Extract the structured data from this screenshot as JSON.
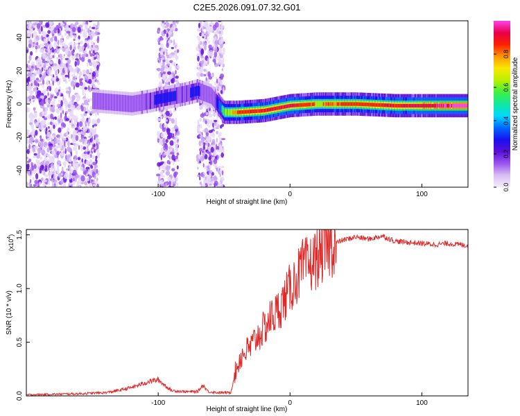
{
  "title": "C2E5.2026.091.07.32.G01",
  "chart_data": [
    {
      "type": "heatmap",
      "title": "",
      "xlabel": "Height of straight line (km)",
      "ylabel": "Frequency (Hz)",
      "xlim": [
        -200,
        135
      ],
      "ylim": [
        -50,
        50
      ],
      "xticks": [
        -100,
        0,
        100
      ],
      "yticks": [
        -40,
        -20,
        0,
        20,
        40
      ],
      "colorbar": {
        "label": "Normalized spectral amplitude",
        "range": [
          0.0,
          1.0
        ],
        "ticks": [
          0.0,
          0.2,
          0.4,
          0.6,
          0.8
        ],
        "colormap": [
          "#f4eefc",
          "#d8bdf3",
          "#9a55f0",
          "#5a10d8",
          "#1a10f0",
          "#0068ff",
          "#00d8ff",
          "#10e8a0",
          "#40f040",
          "#b8f000",
          "#f8e800",
          "#ff9800",
          "#ff2000",
          "#e8004a",
          "#ff40f0"
        ]
      },
      "band": {
        "description_x": [
          -150,
          -135,
          -120,
          -105,
          -100,
          -80,
          -70,
          -60,
          -50,
          -40,
          -20,
          0,
          20,
          50,
          80,
          110,
          135
        ],
        "center_hz": [
          2,
          1,
          0,
          2,
          3,
          6,
          8,
          5,
          -5,
          -5,
          -4,
          -1,
          0,
          0,
          -1,
          -1,
          -1
        ],
        "peak_amplitude": [
          0.35,
          0.4,
          0.38,
          0.45,
          0.5,
          0.45,
          0.5,
          0.3,
          0.75,
          0.85,
          0.9,
          0.92,
          0.8,
          0.85,
          0.9,
          0.95,
          1.0
        ]
      },
      "noise_regions_x": [
        [
          -200,
          -145
        ],
        [
          -100,
          -85
        ],
        [
          -70,
          -50
        ]
      ]
    },
    {
      "type": "line",
      "title": "",
      "xlabel": "Height of straight line (km)",
      "ylabel": "SNR (10 * v/v)",
      "y_multiplier": "(x10",
      "y_multiplier_exp": "4",
      "y_multiplier_close": ")",
      "xlim": [
        -200,
        135
      ],
      "ylim": [
        0,
        1.55
      ],
      "xticks": [
        -100,
        0,
        100
      ],
      "yticks": [
        0.0,
        0.5,
        1.0,
        1.5
      ],
      "ytick_labels": [
        "0.0",
        "0.5",
        "1.0",
        "1.5"
      ],
      "series": [
        {
          "name": "SNR",
          "color": "#e02828",
          "x": [
            -200,
            -180,
            -160,
            -140,
            -130,
            -120,
            -110,
            -105,
            -100,
            -95,
            -90,
            -80,
            -70,
            -66,
            -62,
            -55,
            -45,
            -42,
            -38,
            -35,
            -30,
            -25,
            -20,
            -15,
            -10,
            -5,
            0,
            5,
            10,
            15,
            20,
            25,
            30,
            40,
            50,
            60,
            70,
            80,
            90,
            100,
            110,
            120,
            135
          ],
          "y": [
            0.01,
            0.015,
            0.02,
            0.03,
            0.05,
            0.08,
            0.12,
            0.14,
            0.15,
            0.1,
            0.05,
            0.04,
            0.04,
            0.1,
            0.04,
            0.03,
            0.03,
            0.2,
            0.35,
            0.4,
            0.45,
            0.55,
            0.62,
            0.72,
            0.78,
            0.88,
            1.0,
            1.1,
            1.2,
            1.22,
            1.28,
            1.35,
            1.4,
            1.45,
            1.48,
            1.46,
            1.49,
            1.44,
            1.43,
            1.42,
            1.41,
            1.42,
            1.4
          ]
        }
      ]
    }
  ]
}
